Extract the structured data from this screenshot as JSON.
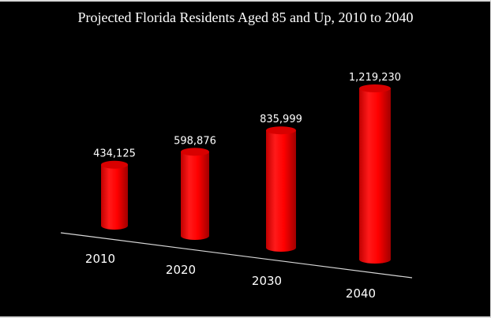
{
  "chart_data": {
    "type": "bar",
    "style": "3d-cylinder",
    "title": "Projected Florida Residents Aged 85 and Up, 2010 to 2040",
    "categories": [
      "2010",
      "2020",
      "2030",
      "2040"
    ],
    "values": [
      434125,
      598876,
      835999,
      1219230
    ],
    "data_labels": [
      "434,125",
      "598,876",
      "835,999",
      "1,219,230"
    ],
    "xlabel": "",
    "ylabel": "",
    "ylim": [
      0,
      1300000
    ],
    "grid": false,
    "legend": "none",
    "colors": {
      "background": "#000000",
      "bar": "#ff0000",
      "bar_dark": "#b00000",
      "text": "#ffffff",
      "axis": "#cccccc"
    }
  }
}
